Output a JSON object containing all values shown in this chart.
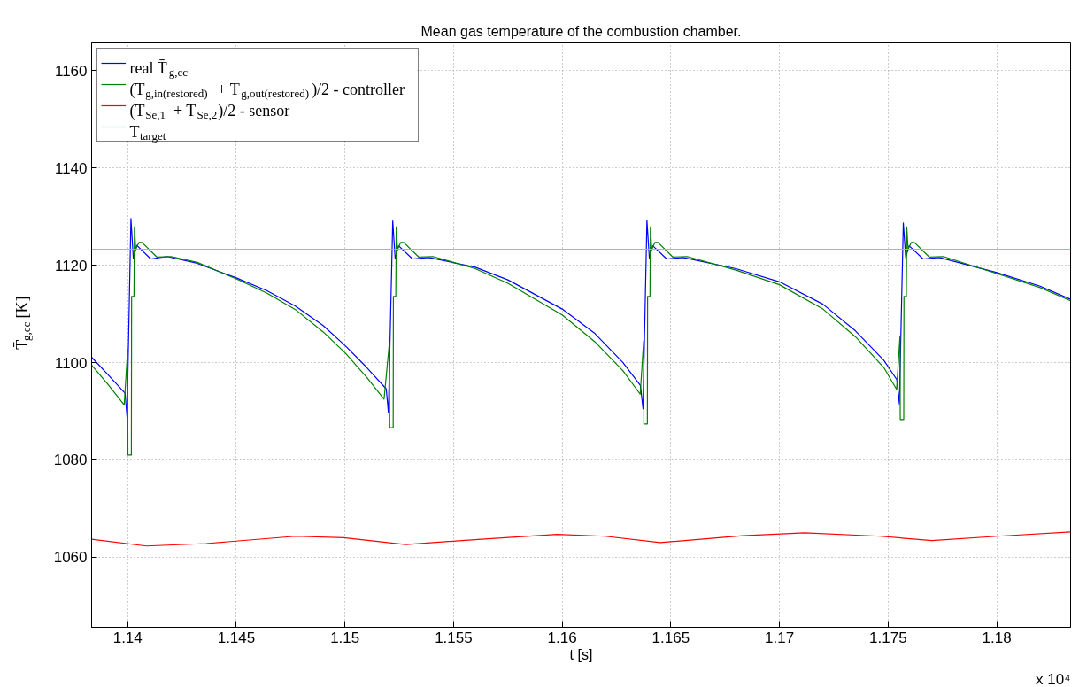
{
  "chart_data": {
    "type": "line",
    "title": "Mean gas temperature of the combustion chamber.",
    "xlabel": "t [s]",
    "ylabel": "T̄$_{g,cc}$ [K]",
    "xlim": [
      1.13834,
      1.1834
    ],
    "ylim": [
      1045.6,
      1165.7
    ],
    "xticks": [
      1.14,
      1.145,
      1.15,
      1.155,
      1.16,
      1.165,
      1.17,
      1.175,
      1.18
    ],
    "yticks": [
      1060,
      1080,
      1100,
      1120,
      1140,
      1160
    ],
    "grid": true,
    "legend": "top left",
    "annotations": [
      "x 10⁴"
    ],
    "series": [
      {
        "name": "real T̄$_{g,cc}$",
        "color": "#0000ff",
        "x": [
          1.13834,
          1.1391,
          1.13988,
          1.13997,
          1.14015,
          1.14026,
          1.14042,
          1.14106,
          1.14181,
          1.1432,
          1.145,
          1.1464,
          1.14772,
          1.149,
          1.15003,
          1.151,
          1.1519,
          1.152,
          1.1522,
          1.15231,
          1.15247,
          1.15311,
          1.15386,
          1.156,
          1.1575,
          1.16,
          1.1615,
          1.1628,
          1.1636,
          1.16372,
          1.1639,
          1.16401,
          1.16417,
          1.16481,
          1.16556,
          1.168,
          1.17,
          1.172,
          1.1735,
          1.1748,
          1.1754,
          1.17552,
          1.1757,
          1.17581,
          1.17597,
          1.17661,
          1.17736,
          1.18,
          1.182,
          1.1834
        ],
        "values": [
          1101.1,
          1097.5,
          1093.7,
          1088.8,
          1129.6,
          1121.4,
          1124.1,
          1121.3,
          1121.8,
          1120.4,
          1117.4,
          1114.8,
          1111.6,
          1107.6,
          1103.4,
          1099.0,
          1094.6,
          1089.7,
          1129.1,
          1121.4,
          1124.0,
          1121.3,
          1121.6,
          1119.6,
          1117.0,
          1111.0,
          1106.0,
          1100.0,
          1095.3,
          1090.5,
          1129.2,
          1121.5,
          1124.0,
          1121.3,
          1121.6,
          1119.3,
          1116.6,
          1112.0,
          1106.5,
          1100.5,
          1096.5,
          1091.5,
          1128.7,
          1121.6,
          1124.0,
          1121.3,
          1121.6,
          1118.5,
          1115.7,
          1113.0
        ]
      },
      {
        "name": "(T$_{g,in(restored)}$ + T$_{g,out(restored)}$)/2 - controller",
        "color": "#008000",
        "x": [
          1.13834,
          1.1391,
          1.13984,
          1.14,
          1.14001,
          1.14017,
          1.14018,
          1.14029,
          1.14031,
          1.14037,
          1.14052,
          1.14066,
          1.14134,
          1.142,
          1.1432,
          1.145,
          1.1464,
          1.14772,
          1.149,
          1.15003,
          1.151,
          1.1518,
          1.15205,
          1.15206,
          1.15222,
          1.15223,
          1.15234,
          1.15236,
          1.15242,
          1.15257,
          1.15271,
          1.15339,
          1.15405,
          1.156,
          1.1575,
          1.16,
          1.1615,
          1.1628,
          1.16359,
          1.16375,
          1.16376,
          1.16392,
          1.16393,
          1.16404,
          1.16406,
          1.16412,
          1.16427,
          1.16441,
          1.16509,
          1.16575,
          1.168,
          1.17,
          1.172,
          1.1735,
          1.1748,
          1.17539,
          1.17555,
          1.17556,
          1.17572,
          1.17573,
          1.17584,
          1.17586,
          1.17592,
          1.17607,
          1.17621,
          1.17689,
          1.17755,
          1.18,
          1.182,
          1.1834
        ],
        "values": [
          1099.5,
          1095.5,
          1091.3,
          1102.8,
          1081.0,
          1081.0,
          1113.6,
          1113.6,
          1127.9,
          1123.3,
          1124.7,
          1124.7,
          1121.7,
          1121.8,
          1120.6,
          1117.2,
          1114.3,
          1110.9,
          1106.3,
          1101.9,
          1097.0,
          1092.5,
          1104.3,
          1086.6,
          1086.6,
          1113.6,
          1113.6,
          1127.9,
          1123.3,
          1124.7,
          1124.7,
          1121.7,
          1121.8,
          1119.3,
          1116.3,
          1109.8,
          1104.3,
          1098.3,
          1093.5,
          1104.5,
          1087.4,
          1087.4,
          1113.6,
          1113.6,
          1127.9,
          1123.3,
          1124.7,
          1124.7,
          1121.7,
          1121.8,
          1119.0,
          1116.0,
          1111.0,
          1105.3,
          1099.0,
          1094.5,
          1105.5,
          1088.3,
          1088.3,
          1113.6,
          1113.6,
          1127.9,
          1123.3,
          1124.7,
          1124.7,
          1121.7,
          1121.8,
          1118.3,
          1115.4,
          1112.7
        ]
      },
      {
        "name": "(T$_{Se,1}$ + T$_{Se,2}$)/2 - sensor",
        "color": "#ff0000",
        "x": [
          1.13834,
          1.14086,
          1.14361,
          1.14773,
          1.14994,
          1.1528,
          1.15628,
          1.15976,
          1.16198,
          1.16451,
          1.16831,
          1.17116,
          1.17465,
          1.17702,
          1.18003,
          1.1834
        ],
        "values": [
          1063.7,
          1062.3,
          1062.8,
          1064.3,
          1064.0,
          1062.6,
          1063.7,
          1064.7,
          1064.3,
          1063.0,
          1064.4,
          1065.0,
          1064.3,
          1063.4,
          1064.3,
          1065.2
        ]
      },
      {
        "name": "T$_{target}$",
        "color": "#5fd3d3",
        "x": [
          1.13834,
          1.1834
        ],
        "values": [
          1123.3,
          1123.3
        ]
      }
    ]
  }
}
